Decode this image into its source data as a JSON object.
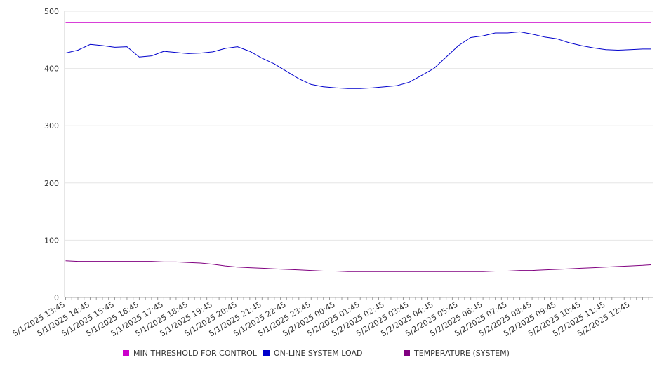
{
  "chart_data": {
    "type": "line",
    "title": "",
    "xlabel": "",
    "ylabel": "",
    "ylim": [
      0,
      500
    ],
    "yticks": [
      0,
      100,
      200,
      300,
      400,
      500
    ],
    "grid": true,
    "legend_position": "bottom",
    "x_tick_labels": [
      "5/1/2025 13:45",
      "5/1/2025 14:45",
      "5/1/2025 15:45",
      "5/1/2025 16:45",
      "5/1/2025 17:45",
      "5/1/2025 18:45",
      "5/1/2025 19:45",
      "5/1/2025 20:45",
      "5/1/2025 21:45",
      "5/1/2025 22:45",
      "5/1/2025 23:45",
      "5/2/2025 00:45",
      "5/2/2025 01:45",
      "5/2/2025 02:45",
      "5/2/2025 03:45",
      "5/2/2025 04:45",
      "5/2/2025 05:45",
      "5/2/2025 06:45",
      "5/2/2025 07:45",
      "5/2/2025 08:45",
      "5/2/2025 09:45",
      "5/2/2025 10:45",
      "5/2/2025 11:45",
      "5/2/2025 12:45"
    ],
    "x": [
      "5/1/2025 13:45",
      "5/1/2025 14:15",
      "5/1/2025 14:45",
      "5/1/2025 15:15",
      "5/1/2025 15:45",
      "5/1/2025 16:15",
      "5/1/2025 16:45",
      "5/1/2025 17:15",
      "5/1/2025 17:45",
      "5/1/2025 18:15",
      "5/1/2025 18:45",
      "5/1/2025 19:15",
      "5/1/2025 19:45",
      "5/1/2025 20:15",
      "5/1/2025 20:45",
      "5/1/2025 21:15",
      "5/1/2025 21:45",
      "5/1/2025 22:15",
      "5/1/2025 22:45",
      "5/1/2025 23:15",
      "5/1/2025 23:45",
      "5/2/2025 00:15",
      "5/2/2025 00:45",
      "5/2/2025 01:15",
      "5/2/2025 01:45",
      "5/2/2025 02:15",
      "5/2/2025 02:45",
      "5/2/2025 03:15",
      "5/2/2025 03:45",
      "5/2/2025 04:15",
      "5/2/2025 04:45",
      "5/2/2025 05:15",
      "5/2/2025 05:45",
      "5/2/2025 06:15",
      "5/2/2025 06:45",
      "5/2/2025 07:15",
      "5/2/2025 07:45",
      "5/2/2025 08:15",
      "5/2/2025 08:45",
      "5/2/2025 09:15",
      "5/2/2025 09:45",
      "5/2/2025 10:15",
      "5/2/2025 10:45",
      "5/2/2025 11:15",
      "5/2/2025 11:45",
      "5/2/2025 12:15",
      "5/2/2025 12:45",
      "5/2/2025 13:15",
      "5/2/2025 13:35"
    ],
    "series": [
      {
        "name": "MIN THRESHOLD FOR CONTROL",
        "color": "#cc00cc",
        "values": [
          480,
          480,
          480,
          480,
          480,
          480,
          480,
          480,
          480,
          480,
          480,
          480,
          480,
          480,
          480,
          480,
          480,
          480,
          480,
          480,
          480,
          480,
          480,
          480,
          480,
          480,
          480,
          480,
          480,
          480,
          480,
          480,
          480,
          480,
          480,
          480,
          480,
          480,
          480,
          480,
          480,
          480,
          480,
          480,
          480,
          480,
          480,
          480,
          480
        ]
      },
      {
        "name": "ON-LINE SYSTEM LOAD",
        "color": "#0000cc",
        "values": [
          427,
          432,
          442,
          440,
          437,
          438,
          420,
          422,
          430,
          428,
          426,
          427,
          429,
          435,
          438,
          430,
          418,
          408,
          395,
          382,
          372,
          368,
          366,
          365,
          365,
          366,
          368,
          370,
          376,
          388,
          400,
          420,
          440,
          454,
          457,
          462,
          462,
          464,
          460,
          455,
          452,
          445,
          440,
          436,
          433,
          432,
          433,
          434,
          434
        ]
      },
      {
        "name": "TEMPERATURE (SYSTEM)",
        "color": "#800080",
        "values": [
          64,
          63,
          63,
          63,
          63,
          63,
          63,
          63,
          62,
          62,
          61,
          60,
          58,
          55,
          53,
          52,
          51,
          50,
          49,
          48,
          47,
          46,
          46,
          45,
          45,
          45,
          45,
          45,
          45,
          45,
          45,
          45,
          45,
          45,
          45,
          46,
          46,
          47,
          47,
          48,
          49,
          50,
          51,
          52,
          53,
          54,
          55,
          56,
          57
        ]
      }
    ]
  }
}
